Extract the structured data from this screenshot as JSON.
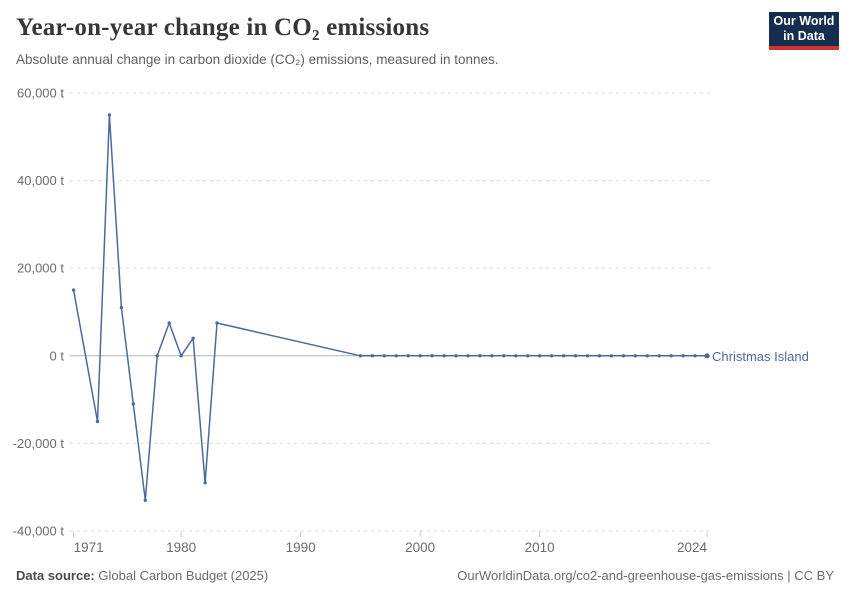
{
  "header": {
    "title": "Year-on-year change in CO₂ emissions",
    "subtitle": "Absolute annual change in carbon dioxide (CO₂) emissions, measured in tonnes.",
    "logo": {
      "line1": "Our World",
      "line2": "in Data"
    }
  },
  "chart_data": {
    "type": "line",
    "title": "Year-on-year change in CO₂ emissions",
    "xlabel": "",
    "ylabel": "",
    "unit": "t",
    "ylim": [
      -40000,
      60000
    ],
    "xlim": [
      1970.7,
      2024.25
    ],
    "grid": "horizontal dashed gridlines, solid zero line, no vertical gridlines",
    "legend_position": "label at end of line",
    "yticks": [
      {
        "value": 60000,
        "label": "60,000 t"
      },
      {
        "value": 40000,
        "label": "40,000 t"
      },
      {
        "value": 20000,
        "label": "20,000 t"
      },
      {
        "value": 0,
        "label": "0 t"
      },
      {
        "value": -20000,
        "label": "-20,000 t"
      },
      {
        "value": -40000,
        "label": "-40,000 t"
      }
    ],
    "xticks": [
      {
        "year": 1971,
        "label": "1971",
        "align": "start"
      },
      {
        "year": 1980,
        "label": "1980",
        "align": "middle"
      },
      {
        "year": 1990,
        "label": "1990",
        "align": "middle"
      },
      {
        "year": 2000,
        "label": "2000",
        "align": "middle"
      },
      {
        "year": 2010,
        "label": "2010",
        "align": "middle"
      },
      {
        "year": 2024,
        "label": "2024",
        "align": "end"
      }
    ],
    "series": [
      {
        "name": "Christmas Island",
        "color": "#4c6a9c",
        "points": [
          [
            1971,
            15000
          ],
          [
            1973,
            -15000
          ],
          [
            1974,
            55000
          ],
          [
            1975,
            11000
          ],
          [
            1976,
            -11000
          ],
          [
            1977,
            -33000
          ],
          [
            1978,
            0
          ],
          [
            1979,
            7500
          ],
          [
            1980,
            0
          ],
          [
            1981,
            4000
          ],
          [
            1982,
            -29000
          ],
          [
            1983,
            7500
          ],
          [
            1995,
            0
          ],
          [
            1996,
            0
          ],
          [
            1997,
            0
          ],
          [
            1998,
            0
          ],
          [
            1999,
            0
          ],
          [
            2000,
            0
          ],
          [
            2001,
            0
          ],
          [
            2002,
            0
          ],
          [
            2003,
            0
          ],
          [
            2004,
            0
          ],
          [
            2005,
            0
          ],
          [
            2006,
            0
          ],
          [
            2007,
            0
          ],
          [
            2008,
            0
          ],
          [
            2009,
            0
          ],
          [
            2010,
            0
          ],
          [
            2011,
            0
          ],
          [
            2012,
            0
          ],
          [
            2013,
            0
          ],
          [
            2014,
            0
          ],
          [
            2015,
            0
          ],
          [
            2016,
            0
          ],
          [
            2017,
            0
          ],
          [
            2018,
            0
          ],
          [
            2019,
            0
          ],
          [
            2020,
            0
          ],
          [
            2021,
            0
          ],
          [
            2022,
            0
          ],
          [
            2023,
            0
          ],
          [
            2024,
            0
          ]
        ]
      }
    ],
    "colors": {
      "gridline": "#dcdcdc",
      "zero_line": "#b3b3b3",
      "tick": "#c8c8c8",
      "axis_text": "#6b6b6b"
    }
  },
  "footer": {
    "source_label": "Data source:",
    "source_value": "Global Carbon Budget (2025)",
    "attribution": "OurWorldinData.org/co2-and-greenhouse-gas-emissions | CC BY"
  }
}
